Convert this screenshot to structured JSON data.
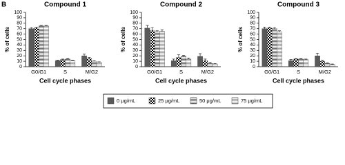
{
  "panel_label": "B",
  "legend_series": [
    {
      "name": "0 μg/mL",
      "color": "#5a5a5a",
      "pattern": "solid"
    },
    {
      "name": "25 μg/mL",
      "color": "#000000",
      "pattern": "checker"
    },
    {
      "name": "50 μg/mL",
      "color": "#6e6e6e",
      "pattern": "stripes"
    },
    {
      "name": "75 μg/mL",
      "color": "#a0a0a0",
      "pattern": "stripes"
    }
  ],
  "chart_data": [
    {
      "type": "bar",
      "title": "Compound 1",
      "y_label": "% of cells",
      "x_label": "Cell cycle phases",
      "categories": [
        "G0/G1",
        "S",
        "M/G2"
      ],
      "ylim": [
        0,
        100
      ],
      "yticks": [
        0,
        10,
        20,
        30,
        40,
        50,
        60,
        70,
        80,
        90,
        100
      ],
      "series": [
        {
          "values": [
            70,
            11,
            20
          ],
          "errors": [
            2,
            1,
            3
          ]
        },
        {
          "values": [
            71,
            13,
            15
          ],
          "errors": [
            2,
            1,
            2
          ]
        },
        {
          "values": [
            75,
            14,
            10
          ],
          "errors": [
            1,
            1,
            1
          ]
        },
        {
          "values": [
            75,
            11,
            8
          ],
          "errors": [
            1,
            1,
            1
          ]
        }
      ]
    },
    {
      "type": "bar",
      "title": "Compound 2",
      "y_label": "% of cells",
      "x_label": "Cell cycle phases",
      "categories": [
        "G0/G1",
        "S",
        "M/G2"
      ],
      "ylim": [
        0,
        100
      ],
      "yticks": [
        0,
        10,
        20,
        30,
        40,
        50,
        60,
        70,
        80,
        90,
        100
      ],
      "series": [
        {
          "values": [
            71,
            11,
            19
          ],
          "errors": [
            5,
            3,
            5
          ]
        },
        {
          "values": [
            67,
            17,
            11
          ],
          "errors": [
            5,
            5,
            3
          ]
        },
        {
          "values": [
            64,
            19,
            6
          ],
          "errors": [
            2,
            2,
            2
          ]
        },
        {
          "values": [
            65,
            14,
            5
          ],
          "errors": [
            3,
            2,
            1
          ]
        }
      ]
    },
    {
      "type": "bar",
      "title": "Compound 3",
      "y_label": "% of cells",
      "x_label": "Cell cycle phases",
      "categories": [
        "G0/G1",
        "S",
        "M/G2"
      ],
      "ylim": [
        0,
        100
      ],
      "yticks": [
        0,
        10,
        20,
        30,
        40,
        50,
        60,
        70,
        80,
        90,
        100
      ],
      "series": [
        {
          "values": [
            70,
            11,
            20
          ],
          "errors": [
            3,
            2,
            5
          ]
        },
        {
          "values": [
            71,
            14,
            10
          ],
          "errors": [
            2,
            1,
            2
          ]
        },
        {
          "values": [
            70,
            14,
            6
          ],
          "errors": [
            2,
            1,
            1
          ]
        },
        {
          "values": [
            64,
            13,
            4
          ],
          "errors": [
            2,
            1,
            1
          ]
        }
      ]
    }
  ]
}
